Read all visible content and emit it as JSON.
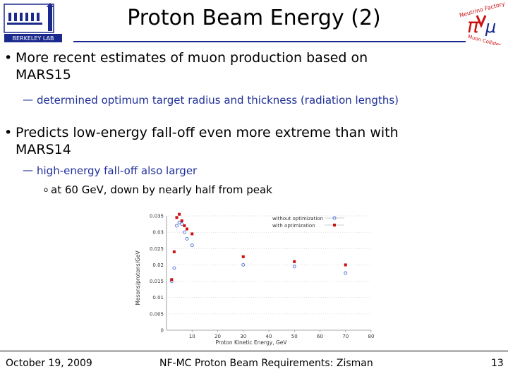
{
  "slide": {
    "title": "Proton Beam Energy (2)",
    "logo_left_text": "BERKELEY LAB",
    "logo_right_text_top": "Neutrino Factory",
    "logo_right_text_bottom": "Muon Collider",
    "bullets": [
      {
        "lines": [
          "More recent estimates of muon production based on",
          "MARS15"
        ],
        "subs": [
          "determined optimum target radius and thickness (radiation lengths)"
        ]
      },
      {
        "lines": [
          "Predicts low-energy fall-off even more extreme than with",
          "MARS14"
        ],
        "subs": [
          "high-energy fall-off also larger"
        ],
        "subsubs": [
          "at 60 GeV, down by nearly half from peak"
        ]
      }
    ],
    "footer": {
      "date": "October 19, 2009",
      "center": "NF-MC Proton Beam Requirements: Zisman",
      "page": "13"
    }
  },
  "chart_data": {
    "type": "scatter",
    "xlabel": "Proton Kinetic Energy, GeV",
    "ylabel": "Mesons/protons/GeV",
    "xlim": [
      0,
      80
    ],
    "ylim": [
      0,
      0.035
    ],
    "xticks": [
      10,
      20,
      30,
      40,
      50,
      60,
      70,
      80
    ],
    "yticks": [
      0,
      0.005,
      0.01,
      0.015,
      0.02,
      0.025,
      0.03,
      0.035
    ],
    "ytick_labels": [
      "0",
      "0.005",
      "0.01",
      "0.015",
      "0.02",
      "0.025",
      "0.03",
      "0.035"
    ],
    "legend_position": "top-right",
    "series": [
      {
        "name": "without optimization",
        "color": "#4a6fd6",
        "marker": "open-circle",
        "x": [
          2,
          3,
          4,
          5,
          6,
          7,
          8,
          10,
          30,
          50,
          70
        ],
        "y": [
          0.015,
          0.019,
          0.032,
          0.033,
          0.0325,
          0.03,
          0.028,
          0.026,
          0.02,
          0.0195,
          0.0175
        ]
      },
      {
        "name": "with optimization",
        "color": "#cc1111",
        "marker": "filled-square",
        "x": [
          2,
          3,
          4,
          5,
          6,
          7,
          8,
          10,
          30,
          50,
          70
        ],
        "y": [
          0.0155,
          0.024,
          0.0345,
          0.0355,
          0.0335,
          0.032,
          0.031,
          0.0295,
          0.0225,
          0.021,
          0.02
        ]
      }
    ]
  }
}
